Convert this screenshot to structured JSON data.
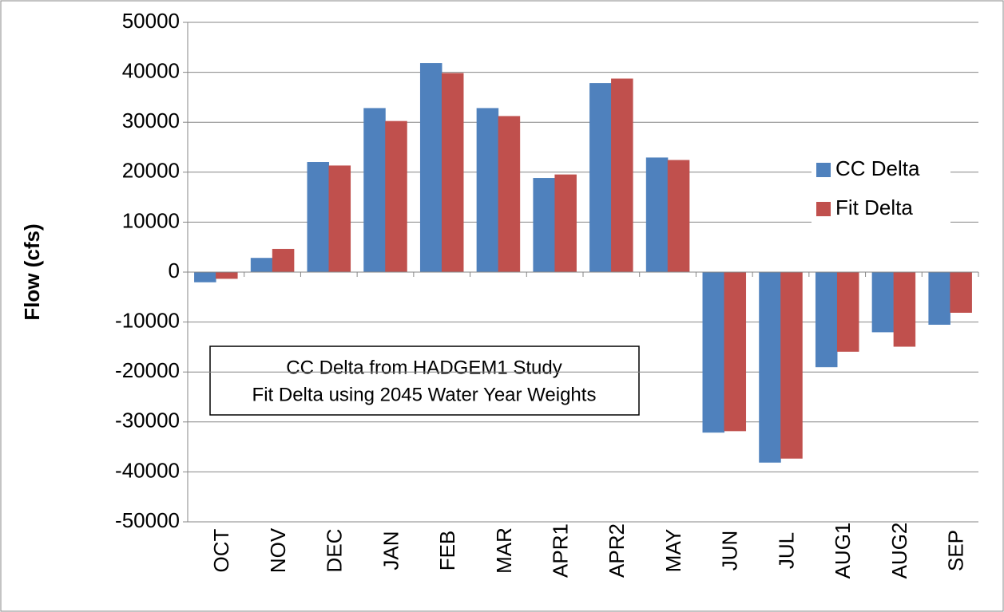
{
  "chart_data": {
    "type": "bar",
    "y_label": "Flow (cfs)",
    "annotation": [
      "CC Delta from HADGEM1 Study",
      "Fit Delta using 2045 Water Year Weights"
    ],
    "categories": [
      "OCT",
      "NOV",
      "DEC",
      "JAN",
      "FEB",
      "MAR",
      "APR1",
      "APR2",
      "MAY",
      "JUN",
      "JUL",
      "AUG1",
      "AUG2",
      "SEP"
    ],
    "series": [
      {
        "name": "CC Delta",
        "color": "#4f81bd",
        "values": [
          -2000,
          2800,
          22000,
          32800,
          41800,
          32800,
          18800,
          37800,
          22900,
          -32100,
          -38100,
          -19000,
          -12000,
          -10500
        ]
      },
      {
        "name": "Fit Delta",
        "color": "#c0504d",
        "values": [
          -1300,
          4600,
          21300,
          30200,
          39800,
          31200,
          19500,
          38700,
          22400,
          -31800,
          -37300,
          -15900,
          -14900,
          -8100
        ]
      }
    ],
    "ylim": [
      -50000,
      50000
    ],
    "yticks": [
      -50000,
      -40000,
      -30000,
      -20000,
      -10000,
      0,
      10000,
      20000,
      30000,
      40000,
      50000
    ],
    "grid": true,
    "legend": "right"
  }
}
